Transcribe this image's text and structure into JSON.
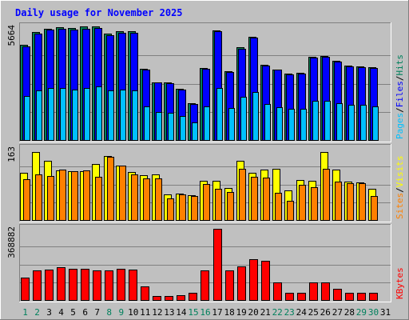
{
  "chart_data": {
    "type": "bar",
    "title": "Daily usage for November 2025",
    "categories": [
      "1",
      "2",
      "3",
      "4",
      "5",
      "6",
      "7",
      "8",
      "9",
      "10",
      "11",
      "12",
      "13",
      "14",
      "15",
      "16",
      "17",
      "18",
      "19",
      "20",
      "21",
      "22",
      "23",
      "24",
      "25",
      "26",
      "27",
      "28",
      "29",
      "30",
      "31"
    ],
    "weekend_days": [
      "1",
      "2",
      "8",
      "9",
      "15",
      "16",
      "22",
      "23",
      "29",
      "30"
    ],
    "panels": [
      {
        "id": "hits",
        "ymax_label": "5664",
        "ymax": 5664,
        "axis_label_parts": [
          "Pages",
          "/",
          "Files",
          "/",
          "Hits"
        ],
        "series": [
          {
            "name": "Hits",
            "values": [
              4800,
              5430,
              5600,
              5650,
              5620,
              5690,
              5720,
              5340,
              5480,
              5460,
              3570,
              2910,
              2880,
              2580,
              1840,
              3600,
              5500,
              3440,
              4640,
              5180,
              3780,
              3550,
              3330,
              3360,
              4170,
              4200,
              3980,
              3720,
              3700,
              3640,
              0
            ]
          },
          {
            "name": "Files",
            "values": [
              4700,
              5330,
              5530,
              5580,
              5540,
              5600,
              5640,
              5250,
              5400,
              5400,
              3520,
              2880,
              2850,
              2540,
              1810,
              3560,
              5460,
              3400,
              4580,
              5130,
              3740,
              3520,
              3300,
              3330,
              4120,
              4160,
              3940,
              3680,
              3660,
              3600,
              0
            ]
          },
          {
            "name": "Pages",
            "values": [
              2200,
              2500,
              2600,
              2600,
              2550,
              2600,
              2700,
              2500,
              2550,
              2500,
              1700,
              1400,
              1350,
              1200,
              900,
              1700,
              2600,
              1600,
              2150,
              2400,
              1800,
              1650,
              1550,
              1550,
              1950,
              1950,
              1850,
              1750,
              1750,
              1700,
              0
            ]
          }
        ]
      },
      {
        "id": "visits",
        "ymax_label": "163",
        "ymax": 163,
        "axis_label_parts": [
          "Sites",
          "/",
          "Visits"
        ],
        "series": [
          {
            "name": "Visits",
            "values": [
              108,
              155,
              135,
              114,
              112,
              112,
              129,
              147,
              124,
              110,
              103,
              104,
              58,
              61,
              56,
              90,
              90,
              73,
              135,
              108,
              115,
              117,
              67,
              92,
              90,
              155,
              116,
              88,
              86,
              72,
              0
            ]
          },
          {
            "name": "Sites",
            "values": [
              93,
              104,
              100,
              115,
              112,
              113,
              99,
              144,
              124,
              105,
              95,
              95,
              50,
              59,
              55,
              82,
              72,
              64,
              117,
              98,
              97,
              62,
              44,
              80,
              76,
              118,
              88,
              85,
              85,
              55,
              0
            ]
          }
        ]
      },
      {
        "id": "kbytes",
        "ymax_label": "368882",
        "ymax": 368882,
        "axis_label_parts": [
          "KBytes"
        ],
        "series": [
          {
            "name": "KBytes",
            "values": [
              118000,
              152000,
              157000,
              170000,
              160000,
              160000,
              153000,
              153000,
              162000,
              158000,
              70000,
              22000,
              22000,
              25000,
              38000,
              153000,
              368882,
              155000,
              175000,
              210000,
              205000,
              93000,
              38000,
              36000,
              90000,
              90000,
              56000,
              36000,
              36000,
              36000,
              0
            ]
          }
        ]
      }
    ],
    "colors": {
      "hits": "#00805c",
      "files": "#0000ff",
      "pages": "#00c0ff",
      "visits": "#ffff00",
      "sites": "#ff8000",
      "kbytes": "#ff0000",
      "slash": "#000000",
      "title": "#0000ff",
      "weekday_label": "#000000",
      "weekend_label": "#00805c",
      "panel_bg": "#c0c0c0",
      "grid": "#808080"
    }
  }
}
